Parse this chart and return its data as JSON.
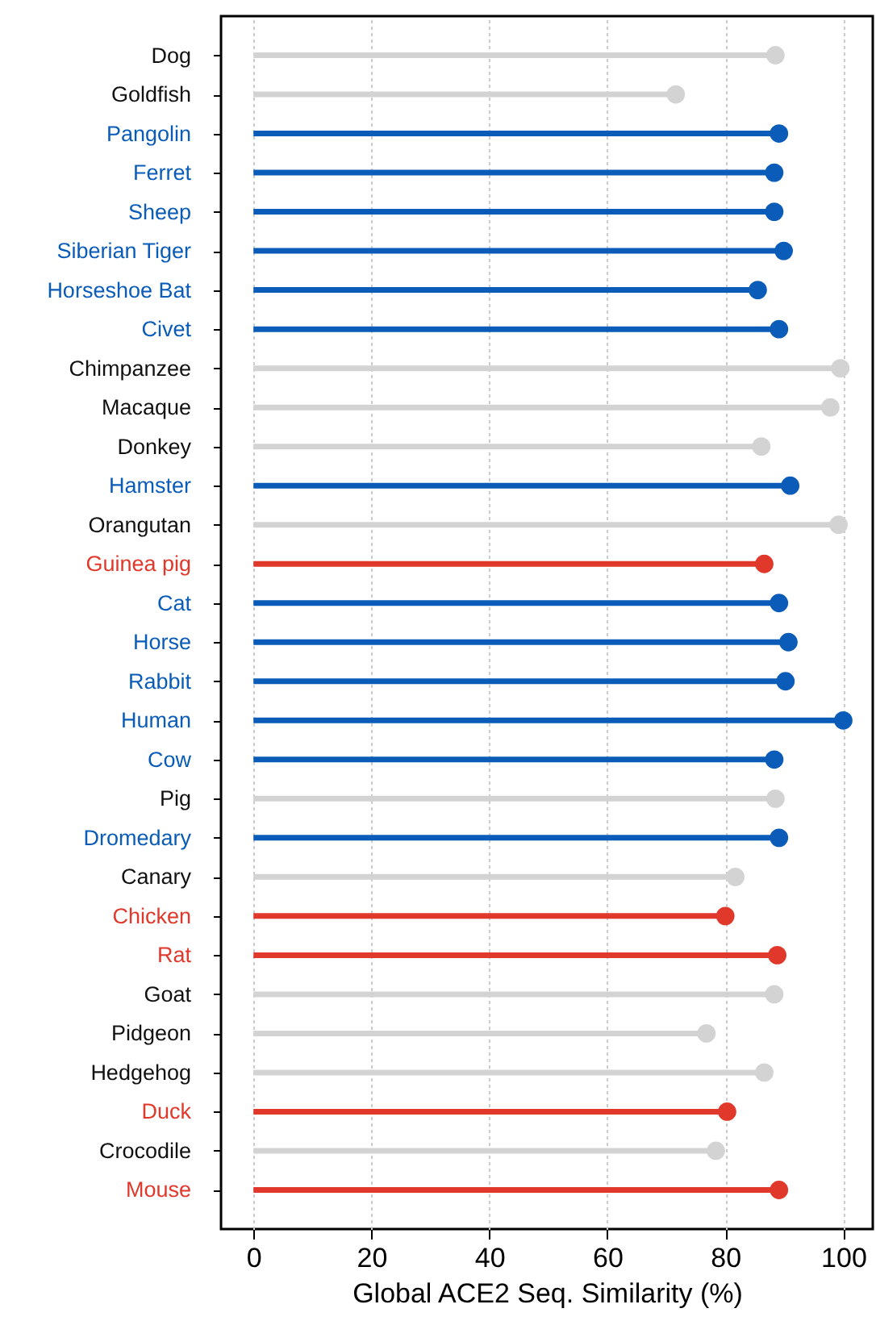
{
  "chart_data": {
    "type": "lollipop",
    "orientation": "horizontal",
    "xlabel": "Global ACE2 Seq. Similarity  (%)",
    "categories": [
      "Dog",
      "Goldfish",
      "Pangolin",
      "Ferret",
      "Sheep",
      "Siberian Tiger",
      "Horseshoe Bat",
      "Civet",
      "Chimpanzee",
      "Macaque",
      "Donkey",
      "Hamster",
      "Orangutan",
      "Guinea pig",
      "Cat",
      "Horse",
      "Rabbit",
      "Human",
      "Cow",
      "Pig",
      "Dromedary",
      "Canary",
      "Chicken",
      "Rat",
      "Goat",
      "Pidgeon",
      "Hedgehog",
      "Duck",
      "Crocodile",
      "Mouse"
    ],
    "values": [
      88.5,
      71.6,
      89.1,
      88.3,
      88.3,
      89.9,
      85.5,
      89.1,
      99.5,
      97.8,
      86.1,
      91,
      99.2,
      86.6,
      89.1,
      90.7,
      90.2,
      100,
      88.3,
      88.5,
      89.1,
      81.7,
      80,
      88.8,
      88.3,
      76.8,
      86.6,
      80.3,
      78.4,
      89.1
    ],
    "colors": [
      "#d3d3d3",
      "#d3d3d3",
      "#0a5cb8",
      "#0a5cb8",
      "#0a5cb8",
      "#0a5cb8",
      "#0a5cb8",
      "#0a5cb8",
      "#d3d3d3",
      "#d3d3d3",
      "#d3d3d3",
      "#0a5cb8",
      "#d3d3d3",
      "#e0382a",
      "#0a5cb8",
      "#0a5cb8",
      "#0a5cb8",
      "#0a5cb8",
      "#0a5cb8",
      "#d3d3d3",
      "#0a5cb8",
      "#d3d3d3",
      "#e0382a",
      "#e0382a",
      "#d3d3d3",
      "#d3d3d3",
      "#d3d3d3",
      "#e0382a",
      "#d3d3d3",
      "#e0382a"
    ],
    "xlim": [
      -5.5,
      105
    ],
    "xticks": [
      0,
      20,
      40,
      60,
      80,
      100
    ],
    "grid": "x",
    "marker": "circle"
  }
}
